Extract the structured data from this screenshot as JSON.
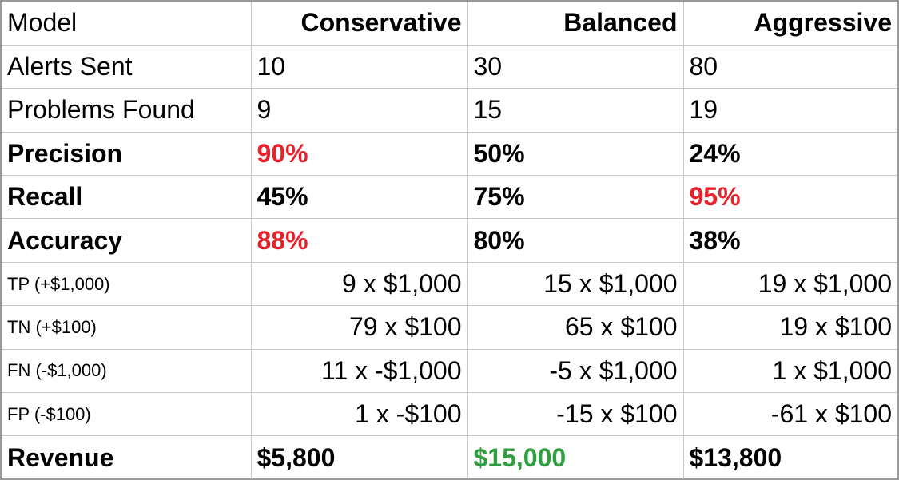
{
  "header": {
    "model_label": "Model",
    "columns": [
      "Conservative",
      "Balanced",
      "Aggressive"
    ]
  },
  "rows": [
    {
      "label": "Alerts Sent",
      "values": [
        "10",
        "30",
        "80"
      ]
    },
    {
      "label": "Problems Found",
      "values": [
        "9",
        "15",
        "19"
      ]
    },
    {
      "label": "Precision",
      "values": [
        "90%",
        "50%",
        "24%"
      ]
    },
    {
      "label": "Recall",
      "values": [
        "45%",
        "75%",
        "95%"
      ]
    },
    {
      "label": "Accuracy",
      "values": [
        "88%",
        "80%",
        "38%"
      ]
    },
    {
      "label": "TP (+$1,000)",
      "values": [
        "9 x $1,000",
        "15 x $1,000",
        "19 x $1,000"
      ]
    },
    {
      "label": "TN (+$100)",
      "values": [
        "79 x $100",
        "65 x $100",
        "19 x $100"
      ]
    },
    {
      "label": "FN (-$1,000)",
      "values": [
        "11 x -$1,000",
        "-5 x $1,000",
        "1 x $1,000"
      ]
    },
    {
      "label": "FP (-$100)",
      "values": [
        "1 x -$100",
        "-15 x $100",
        "-61 x $100"
      ]
    },
    {
      "label": "Revenue",
      "values": [
        "$5,800",
        "$15,000",
        "$13,800"
      ]
    }
  ],
  "colors": {
    "highlight_red": "#e8222d",
    "highlight_green": "#2f9e3f",
    "grid_line": "#c9c9c9",
    "outer_border": "#9a9a9a"
  }
}
